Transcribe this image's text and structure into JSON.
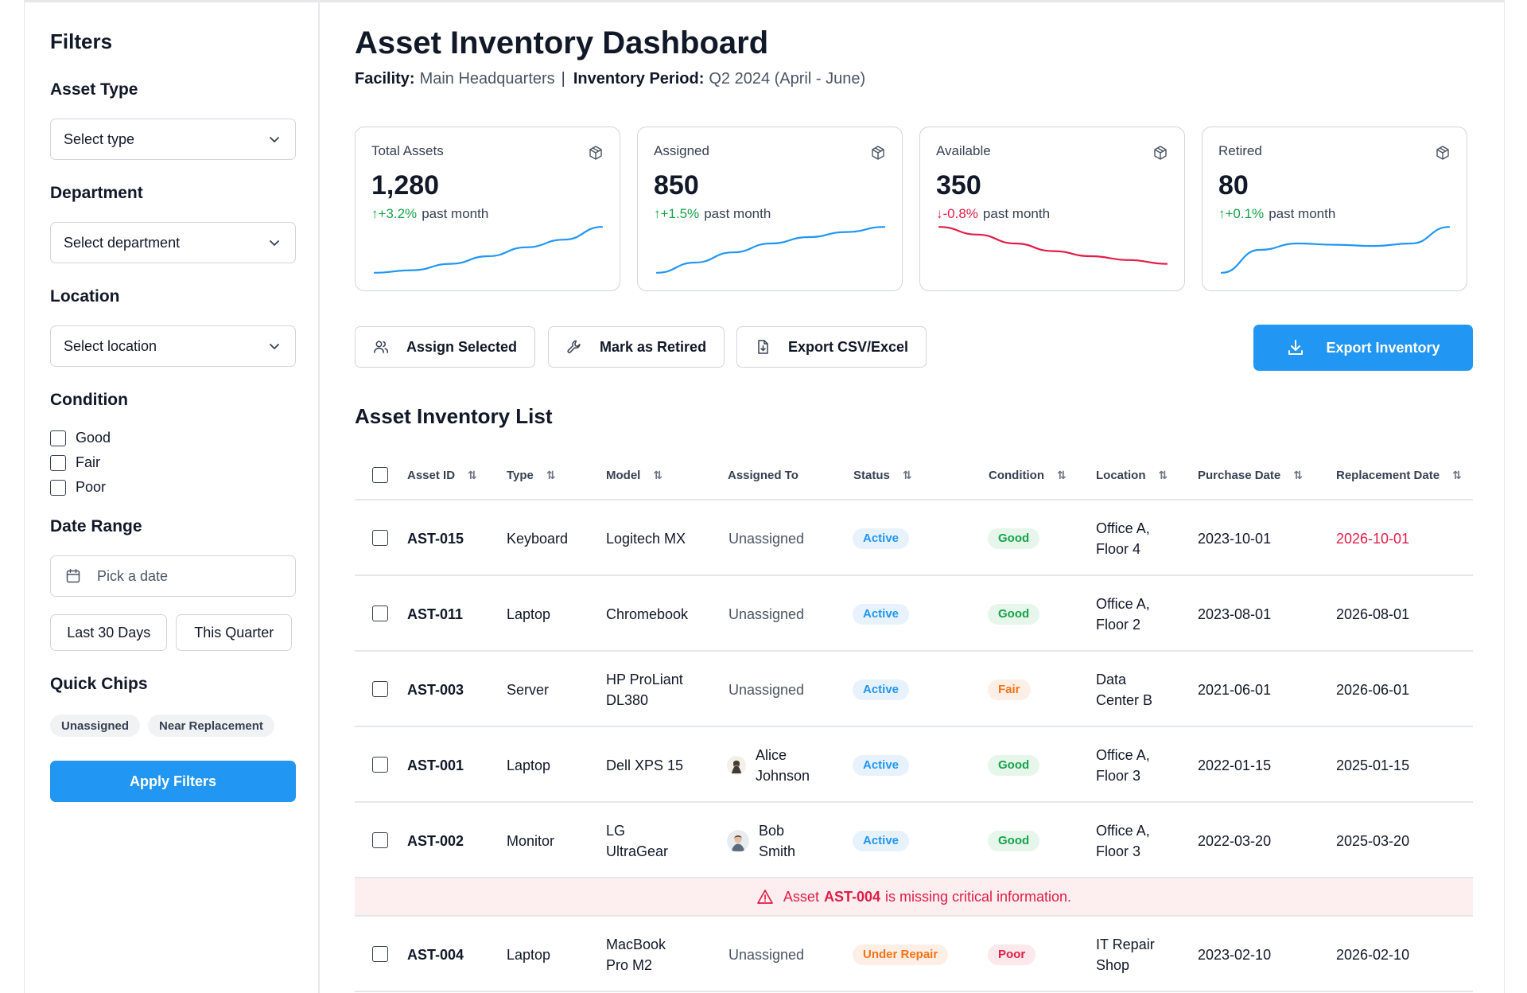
{
  "sidebar": {
    "title": "Filters",
    "asset_type": {
      "label": "Asset Type",
      "placeholder": "Select type"
    },
    "department": {
      "label": "Department",
      "placeholder": "Select department"
    },
    "location": {
      "label": "Location",
      "placeholder": "Select location"
    },
    "condition": {
      "label": "Condition",
      "options": [
        "Good",
        "Fair",
        "Poor"
      ]
    },
    "date_range": {
      "label": "Date Range",
      "placeholder": "Pick a date",
      "last_30": "Last 30 Days",
      "this_quarter": "This Quarter"
    },
    "quick_chips": {
      "label": "Quick Chips",
      "chips": [
        "Unassigned",
        "Near Replacement"
      ]
    },
    "apply_label": "Apply Filters"
  },
  "header": {
    "title": "Asset Inventory Dashboard",
    "facility_label": "Facility:",
    "facility_value": "Main Headquarters",
    "separator": "|",
    "period_label": "Inventory Period:",
    "period_value": "Q2 2024 (April - June)"
  },
  "cards": [
    {
      "label": "Total Assets",
      "value": "1,280",
      "arrow": "↑",
      "delta": "+3.2%",
      "suffix": "past month",
      "trend": "up",
      "color": "#2196f3",
      "spark": [
        4,
        8,
        18,
        30,
        44,
        56,
        76
      ]
    },
    {
      "label": "Assigned",
      "value": "850",
      "arrow": "↑",
      "delta": "+1.5%",
      "suffix": "past month",
      "trend": "up",
      "color": "#2196f3",
      "spark": [
        4,
        20,
        36,
        50,
        60,
        68,
        76
      ]
    },
    {
      "label": "Available",
      "value": "350",
      "arrow": "↓",
      "delta": "-0.8%",
      "suffix": "past month",
      "trend": "down",
      "color": "#e11d48",
      "spark": [
        76,
        64,
        50,
        38,
        30,
        24,
        18
      ]
    },
    {
      "label": "Retired",
      "value": "80",
      "arrow": "↑",
      "delta": "+0.1%",
      "suffix": "past month",
      "trend": "up",
      "color": "#2196f3",
      "spark": [
        4,
        40,
        50,
        48,
        46,
        50,
        76
      ]
    }
  ],
  "actions": {
    "assign": "Assign Selected",
    "retire": "Mark as Retired",
    "export_csv": "Export CSV/Excel",
    "export_inventory": "Export Inventory"
  },
  "list": {
    "title": "Asset Inventory List",
    "columns": [
      "Asset ID",
      "Type",
      "Model",
      "Assigned To",
      "Status",
      "Condition",
      "Location",
      "Purchase Date",
      "Replacement Date"
    ],
    "sort_glyph": "⇅",
    "rows": [
      {
        "id": "AST-015",
        "type": "Keyboard",
        "model": "Logitech MX",
        "assigned": "Unassigned",
        "status": "Active",
        "condition": "Good",
        "location": "Office A, Floor 4",
        "purchase": "2023-10-01",
        "replacement": "2026-10-01",
        "replacement_alert": true
      },
      {
        "id": "AST-011",
        "type": "Laptop",
        "model": "Chromebook",
        "assigned": "Unassigned",
        "status": "Active",
        "condition": "Good",
        "location": "Office A, Floor 2",
        "purchase": "2023-08-01",
        "replacement": "2026-08-01",
        "replacement_alert": false
      },
      {
        "id": "AST-003",
        "type": "Server",
        "model": "HP ProLiant DL380",
        "assigned": "Unassigned",
        "status": "Active",
        "condition": "Fair",
        "location": "Data Center B",
        "purchase": "2021-06-01",
        "replacement": "2026-06-01",
        "replacement_alert": false
      },
      {
        "id": "AST-001",
        "type": "Laptop",
        "model": "Dell XPS 15",
        "assigned": "Alice Johnson",
        "status": "Active",
        "condition": "Good",
        "location": "Office A, Floor 3",
        "purchase": "2022-01-15",
        "replacement": "2025-01-15",
        "replacement_alert": false
      },
      {
        "id": "AST-002",
        "type": "Monitor",
        "model": "LG UltraGear",
        "assigned": "Bob Smith",
        "status": "Active",
        "condition": "Good",
        "location": "Office A, Floor 3",
        "purchase": "2022-03-20",
        "replacement": "2025-03-20",
        "replacement_alert": false
      }
    ],
    "alert": {
      "prefix": "Asset",
      "asset": "AST-004",
      "suffix": "is missing critical information."
    },
    "last_row": {
      "id": "AST-004",
      "type": "Laptop",
      "model": "MacBook Pro M2",
      "assigned": "Unassigned",
      "status": "Under Repair",
      "condition": "Poor",
      "location": "IT Repair Shop",
      "purchase": "2023-02-10",
      "replacement": "2026-02-10"
    }
  }
}
